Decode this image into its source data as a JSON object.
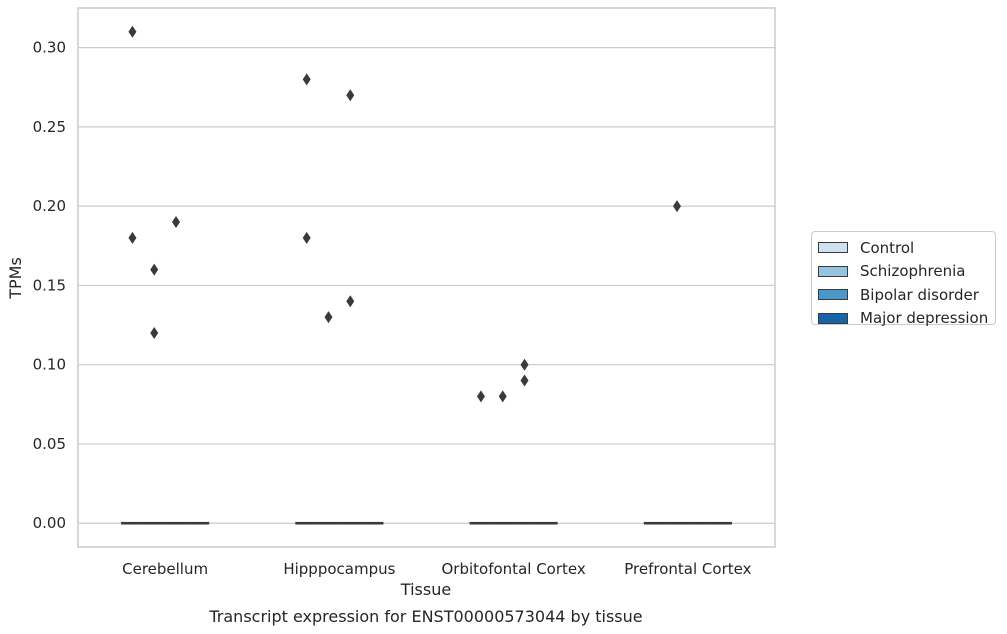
{
  "chart_data": {
    "type": "box",
    "xlabel": "Tissue",
    "ylabel": "TPMs",
    "caption": "Transcript expression for ENST00000573044 by tissue",
    "categories": [
      "Cerebellum",
      "Hipppocampus",
      "Orbitofontal Cortex",
      "Prefrontal Cortex"
    ],
    "ylim": [
      -0.015,
      0.325
    ],
    "yticks": [
      {
        "value": 0.0,
        "label": "0.00"
      },
      {
        "value": 0.05,
        "label": "0.05"
      },
      {
        "value": 0.1,
        "label": "0.10"
      },
      {
        "value": 0.15,
        "label": "0.15"
      },
      {
        "value": 0.2,
        "label": "0.20"
      },
      {
        "value": 0.25,
        "label": "0.25"
      },
      {
        "value": 0.3,
        "label": "0.30"
      }
    ],
    "grid": "horizontal",
    "legend_position": "right",
    "series": [
      {
        "name": "Control",
        "color": "#d0e1f2",
        "median": 0,
        "outliers": {
          "Cerebellum": [
            0.31,
            0.18
          ],
          "Hipppocampus": [
            0.28,
            0.18
          ],
          "Orbitofontal Cortex": [
            0.08
          ],
          "Prefrontal Cortex": []
        }
      },
      {
        "name": "Schizophrenia",
        "color": "#94c4df",
        "median": 0,
        "outliers": {
          "Cerebellum": [
            0.16,
            0.12
          ],
          "Hipppocampus": [
            0.13
          ],
          "Orbitofontal Cortex": [
            0.08
          ],
          "Prefrontal Cortex": [
            0.2
          ]
        }
      },
      {
        "name": "Bipolar disorder",
        "color": "#4a98c9",
        "median": 0,
        "outliers": {
          "Cerebellum": [
            0.19
          ],
          "Hipppocampus": [
            0.27,
            0.14
          ],
          "Orbitofontal Cortex": [
            0.1,
            0.09
          ],
          "Prefrontal Cortex": []
        }
      },
      {
        "name": "Major depression",
        "color": "#1764ab",
        "median": 0,
        "outliers": {
          "Cerebellum": [],
          "Hipppocampus": [],
          "Orbitofontal Cortex": [],
          "Prefrontal Cortex": []
        }
      }
    ]
  }
}
